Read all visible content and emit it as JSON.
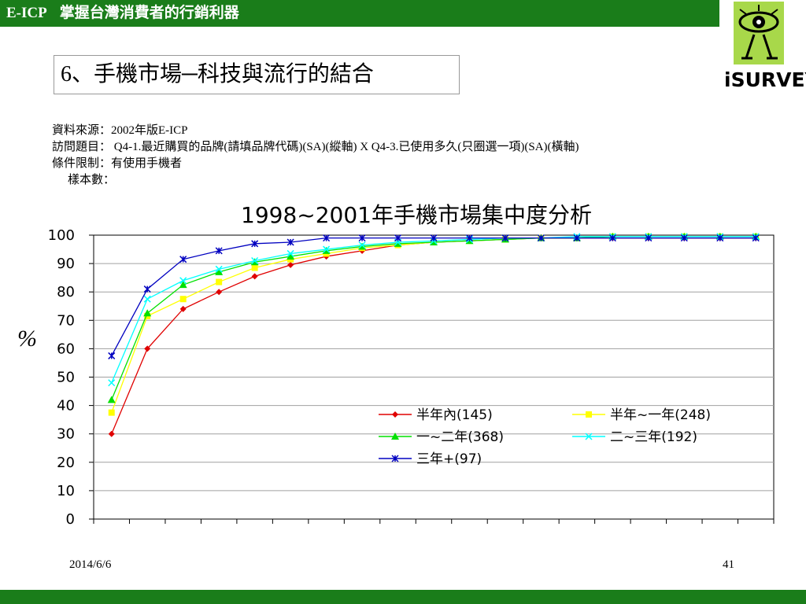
{
  "header": {
    "brand": "E-ICP",
    "title": "掌握台灣消費者的行銷利器"
  },
  "logo": {
    "text": "iSURVEY"
  },
  "slide_title": "6、手機市場─科技與流行的結合",
  "info": {
    "source": "資料來源：2002年版E-ICP",
    "question": "訪問題目： Q4-1.最近購買的品牌(請填品牌代碼)(SA)(縱軸) X Q4-3.已使用多久(只圈選一項)(SA)(橫軸)",
    "condition": "條件限制：有使用手機者",
    "sample": "樣本數："
  },
  "footer": {
    "date": "2014/6/6",
    "page": "41"
  },
  "chart_data": {
    "type": "line",
    "title": "1998~2001年手機市場集中度分析",
    "ylabel": "%",
    "xlabel": "",
    "ylim": [
      0,
      100
    ],
    "yticks": [
      0,
      10,
      20,
      30,
      40,
      50,
      60,
      70,
      80,
      90,
      100
    ],
    "grid": true,
    "legend": "bottom-right",
    "x": [
      1,
      2,
      3,
      4,
      5,
      6,
      7,
      8,
      9,
      10,
      11,
      12,
      13,
      14,
      15,
      16,
      17,
      18,
      19
    ],
    "series": [
      {
        "name": "半年內(145)",
        "color": "#e00000",
        "marker": "diamond",
        "values": [
          30,
          60,
          74,
          80,
          85.5,
          89.5,
          92.5,
          94.5,
          96.5,
          97.5,
          98,
          98.5,
          99,
          99,
          99,
          99,
          99,
          99,
          99
        ]
      },
      {
        "name": "半年~一年(248)",
        "color": "#ffff00",
        "marker": "square",
        "values": [
          37.5,
          71.5,
          77.5,
          83.5,
          88.5,
          91.5,
          93.5,
          95.5,
          96.5,
          97.5,
          98,
          98.5,
          99,
          99,
          99.5,
          99.5,
          99.5,
          99.5,
          99.5
        ]
      },
      {
        "name": "一~二年(368)",
        "color": "#00e000",
        "marker": "triangle",
        "values": [
          42,
          72.5,
          82.5,
          87,
          90.5,
          92.5,
          94.5,
          96,
          97,
          97.5,
          98,
          98.5,
          99,
          99,
          99.5,
          99.5,
          99.5,
          99.5,
          99.5
        ]
      },
      {
        "name": "二~三年(192)",
        "color": "#00ffff",
        "marker": "x",
        "values": [
          48,
          77.5,
          84,
          88,
          91,
          93.5,
          95,
          96.5,
          97.5,
          98,
          98.5,
          99,
          99,
          99.5,
          99.5,
          99.5,
          99.5,
          99.5,
          99.5
        ]
      },
      {
        "name": "三年+(97)",
        "color": "#0000c0",
        "marker": "star",
        "values": [
          57.5,
          81,
          91.5,
          94.5,
          97,
          97.5,
          99,
          99,
          99,
          99,
          99,
          99,
          99,
          99,
          99,
          99,
          99,
          99,
          99
        ]
      }
    ]
  }
}
